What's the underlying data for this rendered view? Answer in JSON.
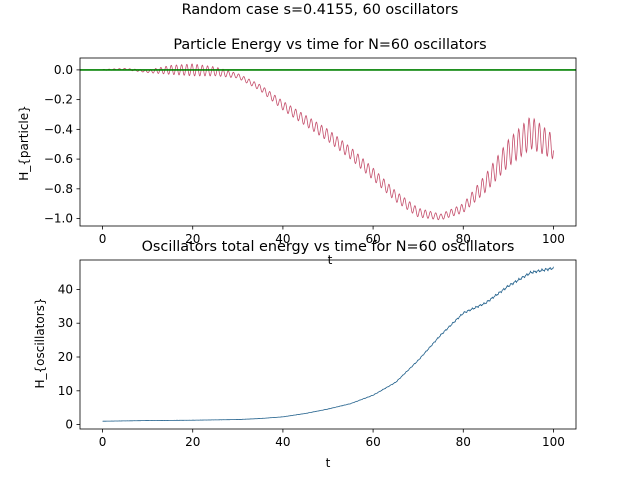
{
  "figure": {
    "suptitle": "Random case s=0.4155, 60 oscillators"
  },
  "chart_data": [
    {
      "type": "line",
      "title": "Particle Energy vs time for N=60 oscillators",
      "xlabel": "t",
      "ylabel": "H_{particle}",
      "xlim": [
        -5,
        105
      ],
      "ylim": [
        -1.05,
        0.08
      ],
      "xticks": [
        0,
        20,
        40,
        60,
        80,
        100
      ],
      "yticks": [
        0.0,
        -0.2,
        -0.4,
        -0.6,
        -0.8,
        -1.0
      ],
      "ytick_labels": [
        "0.0",
        "−0.2",
        "−0.4",
        "−0.6",
        "−0.8",
        "−1.0"
      ],
      "grid": false,
      "series": [
        {
          "color": "#c44e6b",
          "style": "oscillating",
          "x": [
            0,
            5,
            10,
            15,
            20,
            25,
            30,
            35,
            40,
            45,
            50,
            55,
            60,
            65,
            70,
            75,
            80,
            85,
            90,
            95,
            100
          ],
          "y": [
            0.0,
            0.005,
            -0.01,
            0.0,
            0.0,
            -0.01,
            -0.04,
            -0.12,
            -0.24,
            -0.34,
            -0.44,
            -0.56,
            -0.7,
            -0.85,
            -0.96,
            -0.99,
            -0.93,
            -0.76,
            -0.56,
            -0.42,
            -0.52
          ],
          "amplitude": [
            0.003,
            0.005,
            0.008,
            0.03,
            0.04,
            0.03,
            0.015,
            0.02,
            0.03,
            0.035,
            0.04,
            0.04,
            0.04,
            0.035,
            0.03,
            0.02,
            0.03,
            0.06,
            0.09,
            0.11,
            0.08
          ]
        },
        {
          "color": "#008000",
          "style": "flat",
          "x": [
            -5,
            105
          ],
          "y": [
            0.0,
            0.0
          ]
        }
      ]
    },
    {
      "type": "line",
      "title": "Oscillators total energy vs time for N=60 oscillators",
      "xlabel": "t",
      "ylabel": "H_{oscillators}",
      "xlim": [
        -5,
        105
      ],
      "ylim": [
        -1.3,
        48.7
      ],
      "xticks": [
        0,
        20,
        40,
        60,
        80,
        100
      ],
      "yticks": [
        0,
        10,
        20,
        30,
        40
      ],
      "ytick_labels": [
        "0",
        "10",
        "20",
        "30",
        "40"
      ],
      "grid": false,
      "series": [
        {
          "color": "#1f5f8b",
          "style": "jitter",
          "x": [
            0,
            10,
            20,
            30,
            35,
            40,
            45,
            50,
            55,
            60,
            65,
            70,
            75,
            80,
            85,
            90,
            95,
            100
          ],
          "y": [
            1.0,
            1.2,
            1.3,
            1.5,
            1.8,
            2.3,
            3.3,
            4.6,
            6.2,
            8.7,
            12.5,
            19.0,
            26.5,
            33.0,
            36.0,
            41.0,
            45.0,
            46.3
          ]
        }
      ]
    }
  ]
}
